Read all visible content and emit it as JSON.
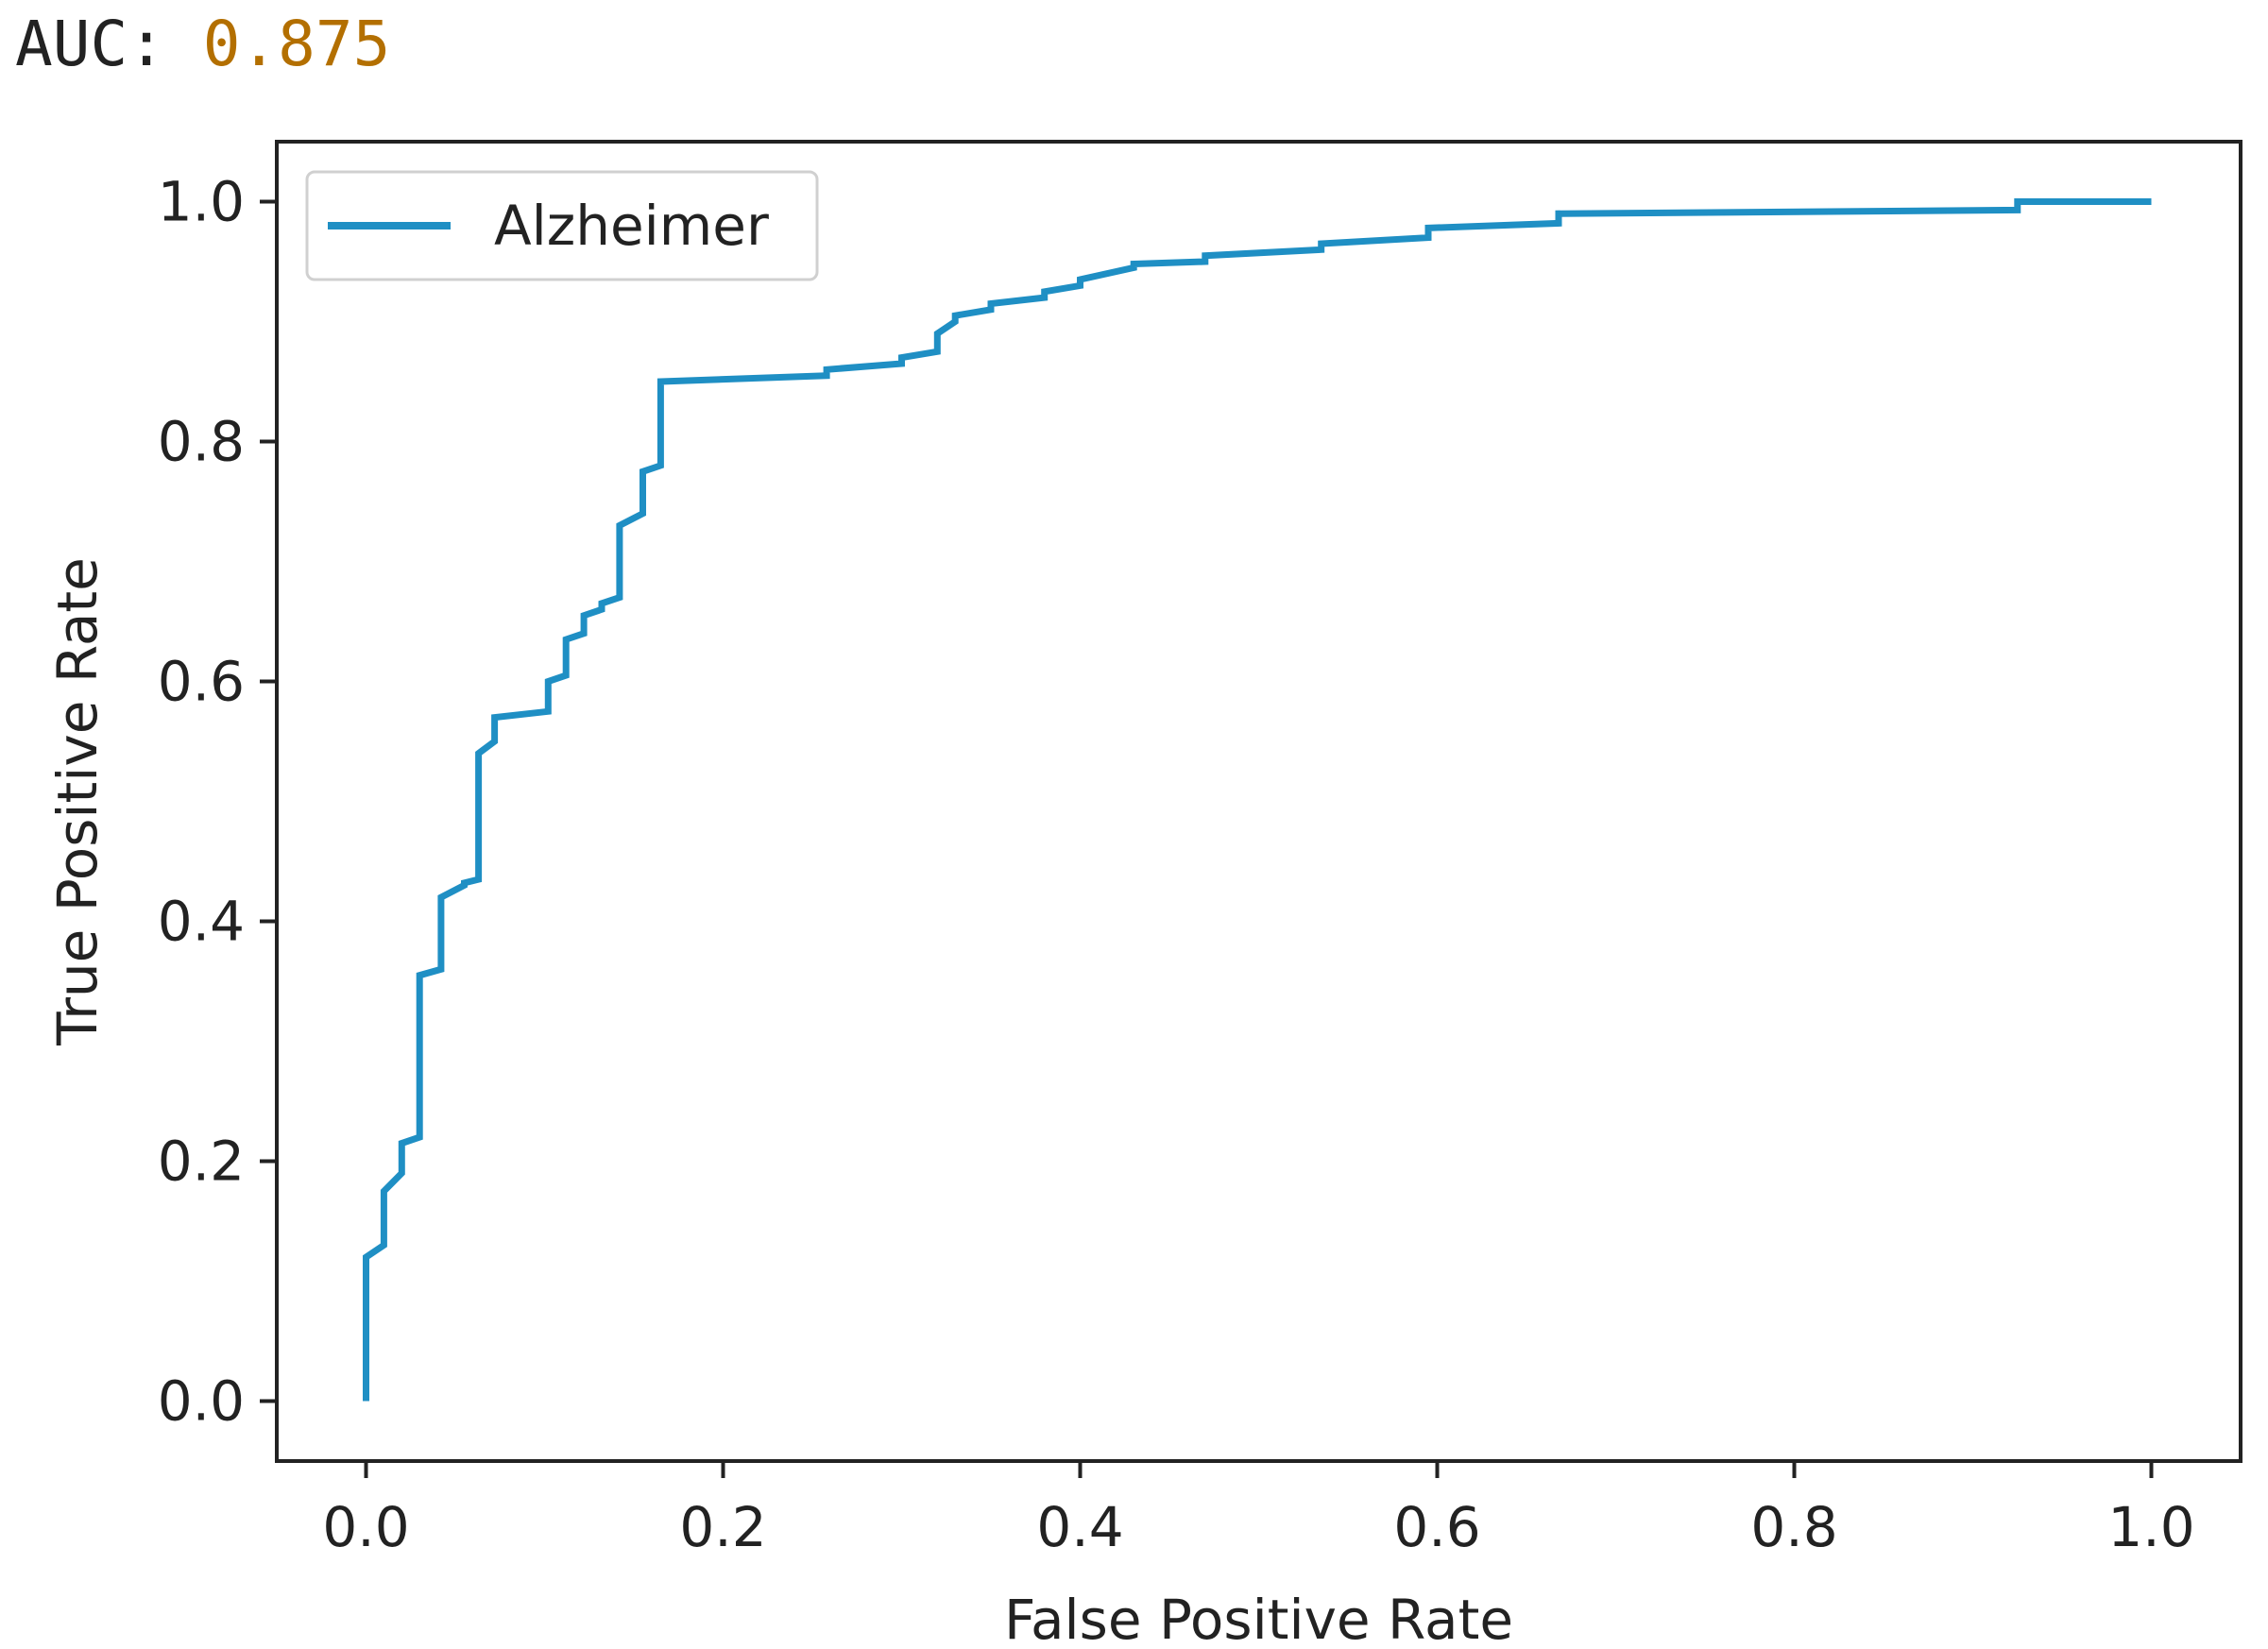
{
  "output": {
    "prefix": "AUC: ",
    "value": "0.875"
  },
  "chart_data": {
    "type": "line",
    "title": "",
    "xlabel": "False Positive Rate",
    "ylabel": "True Positive Rate",
    "xlim": [
      -0.05,
      1.05
    ],
    "ylim": [
      -0.05,
      1.05
    ],
    "xticks": [
      "0.0",
      "0.2",
      "0.4",
      "0.6",
      "0.8",
      "1.0"
    ],
    "yticks": [
      "0.0",
      "0.2",
      "0.4",
      "0.6",
      "0.8",
      "1.0"
    ],
    "grid": false,
    "legend": {
      "placement": "upper left",
      "entries": [
        "Alzheimer"
      ]
    },
    "series": [
      {
        "name": "Alzheimer",
        "color": "#1f8fc4",
        "x": [
          0.0,
          0.0,
          0.01,
          0.01,
          0.02,
          0.02,
          0.03,
          0.03,
          0.042,
          0.042,
          0.055,
          0.055,
          0.063,
          0.063,
          0.072,
          0.072,
          0.102,
          0.102,
          0.112,
          0.112,
          0.122,
          0.122,
          0.132,
          0.132,
          0.142,
          0.142,
          0.155,
          0.155,
          0.165,
          0.165,
          0.258,
          0.258,
          0.3,
          0.3,
          0.32,
          0.32,
          0.33,
          0.33,
          0.35,
          0.35,
          0.38,
          0.38,
          0.4,
          0.4,
          0.43,
          0.43,
          0.47,
          0.47,
          0.535,
          0.535,
          0.595,
          0.595,
          0.668,
          0.668,
          0.925,
          0.925,
          1.0
        ],
        "y": [
          0.0,
          0.12,
          0.13,
          0.175,
          0.19,
          0.215,
          0.22,
          0.355,
          0.36,
          0.42,
          0.43,
          0.432,
          0.435,
          0.54,
          0.55,
          0.57,
          0.575,
          0.6,
          0.605,
          0.635,
          0.64,
          0.655,
          0.66,
          0.665,
          0.67,
          0.73,
          0.74,
          0.775,
          0.78,
          0.85,
          0.855,
          0.86,
          0.865,
          0.87,
          0.875,
          0.89,
          0.9,
          0.905,
          0.91,
          0.915,
          0.92,
          0.925,
          0.93,
          0.935,
          0.945,
          0.948,
          0.95,
          0.955,
          0.96,
          0.965,
          0.97,
          0.978,
          0.982,
          0.99,
          0.993,
          1.0,
          1.0
        ]
      }
    ]
  }
}
